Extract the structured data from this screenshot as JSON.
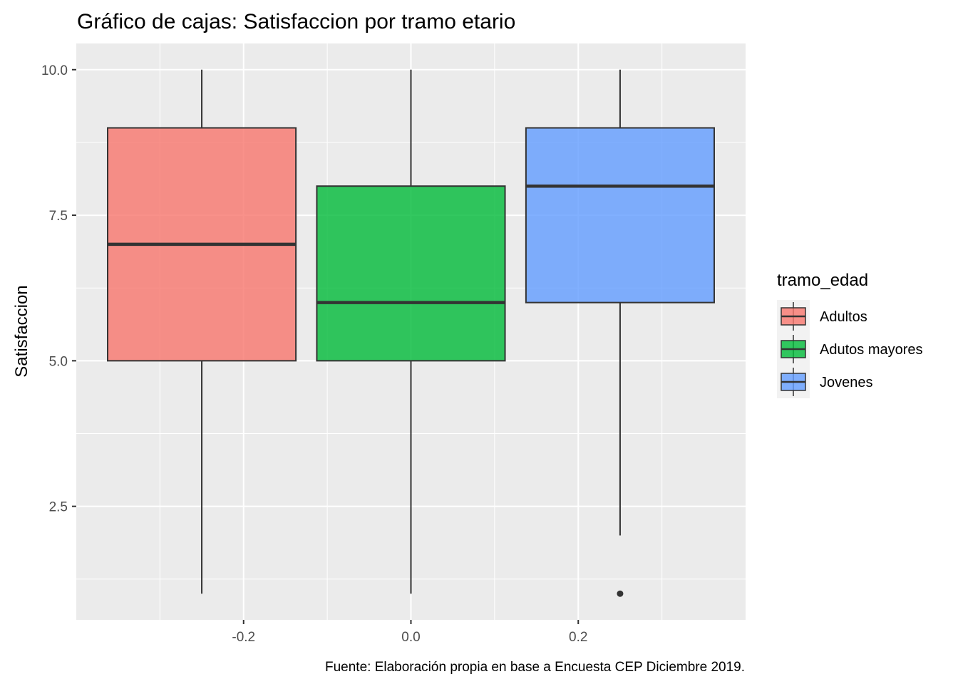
{
  "chart_data": {
    "type": "boxplot",
    "title": "Gráfico de cajas: Satisfaccion por tramo etario",
    "xlabel": "",
    "ylabel": "Satisfaccion",
    "caption": "Fuente: Elaboración propia en base a Encuesta CEP Diciembre 2019.",
    "xlim": [
      -0.4,
      0.4
    ],
    "ylim": [
      0.55,
      10.45
    ],
    "x_ticks": [
      -0.2,
      0.0,
      0.2
    ],
    "x_tick_labels": [
      "-0.2",
      "0.0",
      "0.2"
    ],
    "y_ticks": [
      2.5,
      5.0,
      7.5,
      10.0
    ],
    "y_tick_labels": [
      "2.5",
      "5.0",
      "7.5",
      "10.0"
    ],
    "grid": true,
    "legend": {
      "title": "tramo_edad",
      "position": "right"
    },
    "series": [
      {
        "name": "Adultos",
        "color": "#F8766D",
        "x_center": -0.25,
        "x_range": [
          -0.3625,
          -0.1375
        ],
        "whisker_low": 1,
        "q1": 5,
        "median": 7,
        "q3": 9,
        "whisker_high": 10,
        "outliers": []
      },
      {
        "name": "Adutos mayores",
        "color": "#00BA38",
        "x_center": 0.0,
        "x_range": [
          -0.1125,
          0.1125
        ],
        "whisker_low": 1,
        "q1": 5,
        "median": 6,
        "q3": 8,
        "whisker_high": 10,
        "outliers": []
      },
      {
        "name": "Jovenes",
        "color": "#619CFF",
        "x_center": 0.25,
        "x_range": [
          0.1375,
          0.3625
        ],
        "whisker_low": 2,
        "q1": 6,
        "median": 8,
        "q3": 9,
        "whisker_high": 10,
        "outliers": [
          1
        ]
      }
    ]
  }
}
